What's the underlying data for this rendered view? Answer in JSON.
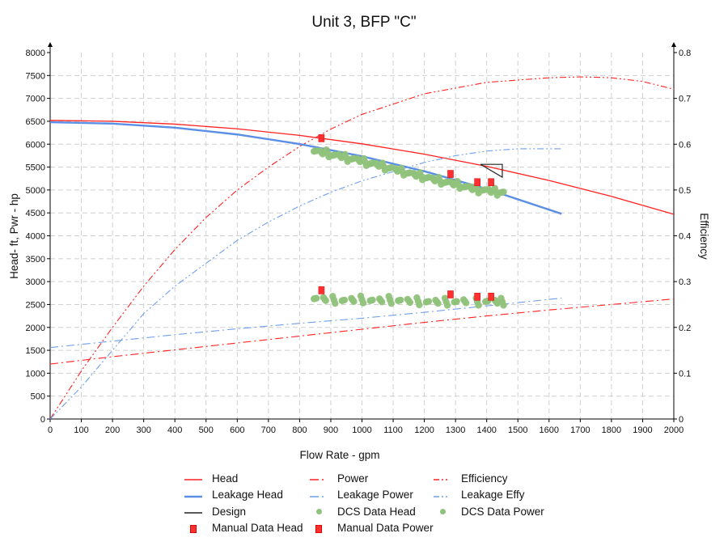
{
  "chart_data": {
    "type": "line",
    "title": "Unit 3, BFP \"C\"",
    "xlabel": "Flow Rate - gpm",
    "ylabel": "Head- ft, Pwr - hp",
    "y2label": "Efficiency",
    "xlim": [
      0,
      2000
    ],
    "ylim": [
      0,
      8000
    ],
    "y2lim": [
      0,
      0.8
    ],
    "xticks": [
      0,
      100,
      200,
      300,
      400,
      500,
      600,
      700,
      800,
      900,
      1000,
      1100,
      1200,
      1300,
      1400,
      1500,
      1600,
      1700,
      1800,
      1900,
      2000
    ],
    "yticks": [
      0,
      500,
      1000,
      1500,
      2000,
      2500,
      3000,
      3500,
      4000,
      4500,
      5000,
      5500,
      6000,
      6500,
      7000,
      7500,
      8000
    ],
    "y2ticks": [
      "0",
      "0.1",
      "0.2",
      "0.3",
      "0.4",
      "0.5",
      "0.6",
      "0.7",
      "0.8"
    ],
    "grid": true,
    "legend_placement": "bottom",
    "series": [
      {
        "name": "Head",
        "axis": "left",
        "color": "#ff2020",
        "style": "solid",
        "width": 1.3,
        "points": [
          [
            0,
            6520
          ],
          [
            200,
            6500
          ],
          [
            400,
            6438
          ],
          [
            600,
            6335
          ],
          [
            800,
            6192
          ],
          [
            1000,
            6008
          ],
          [
            1200,
            5782
          ],
          [
            1400,
            5516
          ],
          [
            1600,
            5208
          ],
          [
            1800,
            4860
          ],
          [
            2000,
            4470
          ]
        ]
      },
      {
        "name": "Power",
        "axis": "left",
        "color": "#ff2020",
        "style": "dashdot",
        "width": 1.1,
        "points": [
          [
            0,
            1200
          ],
          [
            200,
            1360
          ],
          [
            400,
            1510
          ],
          [
            600,
            1660
          ],
          [
            800,
            1810
          ],
          [
            1000,
            1960
          ],
          [
            1200,
            2110
          ],
          [
            1400,
            2250
          ],
          [
            1600,
            2380
          ],
          [
            1800,
            2500
          ],
          [
            2000,
            2620
          ]
        ]
      },
      {
        "name": "Efficiency",
        "axis": "right",
        "color": "#ff2020",
        "style": "dashdotdot",
        "width": 1.1,
        "points": [
          [
            0,
            0
          ],
          [
            100,
            0.105
          ],
          [
            200,
            0.2
          ],
          [
            300,
            0.29
          ],
          [
            400,
            0.37
          ],
          [
            500,
            0.44
          ],
          [
            600,
            0.5
          ],
          [
            700,
            0.55
          ],
          [
            800,
            0.595
          ],
          [
            900,
            0.633
          ],
          [
            1000,
            0.665
          ],
          [
            1200,
            0.71
          ],
          [
            1400,
            0.735
          ],
          [
            1600,
            0.745
          ],
          [
            1700,
            0.747
          ],
          [
            1800,
            0.745
          ],
          [
            1900,
            0.737
          ],
          [
            2000,
            0.72
          ]
        ]
      },
      {
        "name": "Leakage Head",
        "axis": "left",
        "color": "#5b8fe6",
        "style": "solid",
        "width": 2.4,
        "points": [
          [
            0,
            6480
          ],
          [
            200,
            6450
          ],
          [
            400,
            6361
          ],
          [
            600,
            6212
          ],
          [
            800,
            6004
          ],
          [
            1000,
            5736
          ],
          [
            1200,
            5409
          ],
          [
            1400,
            5022
          ],
          [
            1640,
            4480
          ]
        ]
      },
      {
        "name": "Leakage Power",
        "axis": "left",
        "color": "#6f9fec",
        "style": "dashdot",
        "width": 1.1,
        "points": [
          [
            0,
            1560
          ],
          [
            200,
            1700
          ],
          [
            400,
            1840
          ],
          [
            600,
            1970
          ],
          [
            800,
            2090
          ],
          [
            1000,
            2200
          ],
          [
            1200,
            2330
          ],
          [
            1400,
            2470
          ],
          [
            1640,
            2640
          ]
        ]
      },
      {
        "name": "Leakage Effy",
        "axis": "right",
        "color": "#6f9fec",
        "style": "dashdotdot",
        "width": 1.1,
        "points": [
          [
            0,
            0
          ],
          [
            100,
            0.07
          ],
          [
            200,
            0.15
          ],
          [
            300,
            0.23
          ],
          [
            400,
            0.29
          ],
          [
            500,
            0.34
          ],
          [
            600,
            0.39
          ],
          [
            700,
            0.43
          ],
          [
            800,
            0.465
          ],
          [
            900,
            0.495
          ],
          [
            1000,
            0.52
          ],
          [
            1100,
            0.54
          ],
          [
            1200,
            0.56
          ],
          [
            1300,
            0.575
          ],
          [
            1400,
            0.585
          ],
          [
            1500,
            0.59
          ],
          [
            1640,
            0.59
          ]
        ]
      },
      {
        "name": "Design",
        "axis": "left",
        "color": "#222222",
        "style": "solid",
        "width": 1.2,
        "points": [
          [
            1380,
            5560
          ],
          [
            1450,
            5560
          ],
          [
            1450,
            5280
          ],
          [
            1380,
            5560
          ]
        ]
      }
    ],
    "scatter": [
      {
        "name": "DCS Data Head",
        "marker": "circle",
        "color": "#8fc27a",
        "points": [
          [
            850,
            5850
          ],
          [
            870,
            5820
          ],
          [
            890,
            5800
          ],
          [
            910,
            5760
          ],
          [
            930,
            5740
          ],
          [
            950,
            5700
          ],
          [
            970,
            5680
          ],
          [
            990,
            5650
          ],
          [
            1010,
            5610
          ],
          [
            1030,
            5580
          ],
          [
            1050,
            5550
          ],
          [
            1070,
            5510
          ],
          [
            1090,
            5480
          ],
          [
            1110,
            5440
          ],
          [
            1130,
            5400
          ],
          [
            1150,
            5370
          ],
          [
            1170,
            5330
          ],
          [
            1190,
            5300
          ],
          [
            1210,
            5270
          ],
          [
            1230,
            5230
          ],
          [
            1250,
            5200
          ],
          [
            1270,
            5170
          ],
          [
            1290,
            5140
          ],
          [
            1310,
            5110
          ],
          [
            1330,
            5070
          ],
          [
            1350,
            5040
          ],
          [
            1370,
            5010
          ],
          [
            1390,
            5000
          ],
          [
            1410,
            4980
          ],
          [
            1430,
            4960
          ],
          [
            1450,
            4950
          ]
        ]
      },
      {
        "name": "DCS Data Power",
        "marker": "circle",
        "color": "#8fc27a",
        "points": [
          [
            850,
            2630
          ],
          [
            880,
            2620
          ],
          [
            910,
            2600
          ],
          [
            940,
            2590
          ],
          [
            970,
            2600
          ],
          [
            1000,
            2610
          ],
          [
            1030,
            2590
          ],
          [
            1060,
            2590
          ],
          [
            1090,
            2600
          ],
          [
            1120,
            2590
          ],
          [
            1150,
            2580
          ],
          [
            1180,
            2570
          ],
          [
            1210,
            2560
          ],
          [
            1240,
            2560
          ],
          [
            1270,
            2560
          ],
          [
            1300,
            2560
          ],
          [
            1330,
            2570
          ],
          [
            1370,
            2560
          ],
          [
            1400,
            2570
          ],
          [
            1430,
            2560
          ],
          [
            1450,
            2560
          ]
        ]
      },
      {
        "name": "Manual Data Head",
        "marker": "square",
        "color": "#ff3030",
        "points": [
          [
            870,
            6130
          ],
          [
            1284,
            5350
          ],
          [
            1370,
            5170
          ],
          [
            1414,
            5170
          ]
        ]
      },
      {
        "name": "Manual Data Power",
        "marker": "square",
        "color": "#ff3030",
        "points": [
          [
            870,
            2810
          ],
          [
            1284,
            2720
          ],
          [
            1370,
            2670
          ],
          [
            1414,
            2670
          ]
        ]
      }
    ],
    "legend": [
      "Head",
      "Power",
      "Efficiency",
      "Leakage Head",
      "Leakage Power",
      "Leakage Effy",
      "Design",
      "DCS Data Head",
      "DCS Data Power",
      "Manual Data Head",
      "Manual Data Power"
    ]
  }
}
